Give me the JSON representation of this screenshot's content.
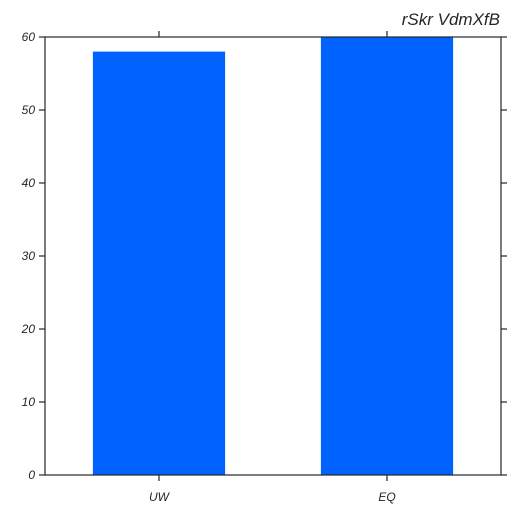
{
  "chart_data": {
    "type": "bar",
    "title": "rSkr VdmXfB",
    "xlabel": "",
    "ylabel": "",
    "categories": [
      "UW",
      "EQ"
    ],
    "values": [
      58,
      60
    ],
    "ylim": [
      0,
      60
    ],
    "yticks": [
      "0",
      "10",
      "20",
      "30",
      "40",
      "50",
      "60"
    ],
    "bar_color": "#0062ff",
    "grid": false,
    "ticks_mirrored": true
  }
}
